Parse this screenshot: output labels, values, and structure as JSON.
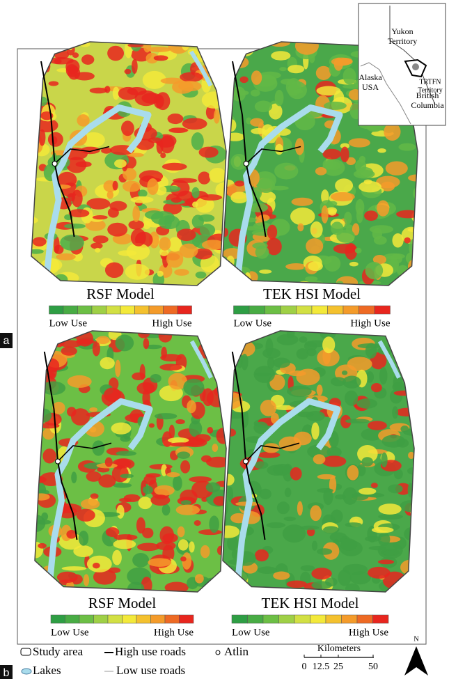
{
  "panels": [
    {
      "label": "a",
      "maps": [
        {
          "title": "RSF Model",
          "legend": {
            "low": "Low Use",
            "high": "High Use"
          }
        },
        {
          "title": "TEK HSI Model",
          "legend": {
            "low": "Low Use",
            "high": "High Use"
          }
        }
      ]
    },
    {
      "label": "b",
      "maps": [
        {
          "title": "RSF Model",
          "legend": {
            "low": "Low Use",
            "high": "High Use"
          }
        },
        {
          "title": "TEK HSI Model",
          "legend": {
            "low": "Low Use",
            "high": "High Use"
          }
        }
      ]
    }
  ],
  "inset": {
    "labels": [
      {
        "lines": [
          "Yukon",
          "Territory"
        ]
      },
      {
        "lines": [
          "TRTFN",
          "Territory"
        ]
      },
      {
        "lines": [
          "Alaska",
          "USA"
        ]
      },
      {
        "lines": [
          "British",
          "Columbia"
        ]
      }
    ]
  },
  "legend": {
    "items": [
      "Study area",
      "High use roads",
      "Atlin",
      "Lakes",
      "Low use roads"
    ],
    "scale": {
      "title": "Kilometers",
      "ticks": [
        "0",
        "12.5",
        "25",
        "50"
      ]
    },
    "north": "N"
  }
}
